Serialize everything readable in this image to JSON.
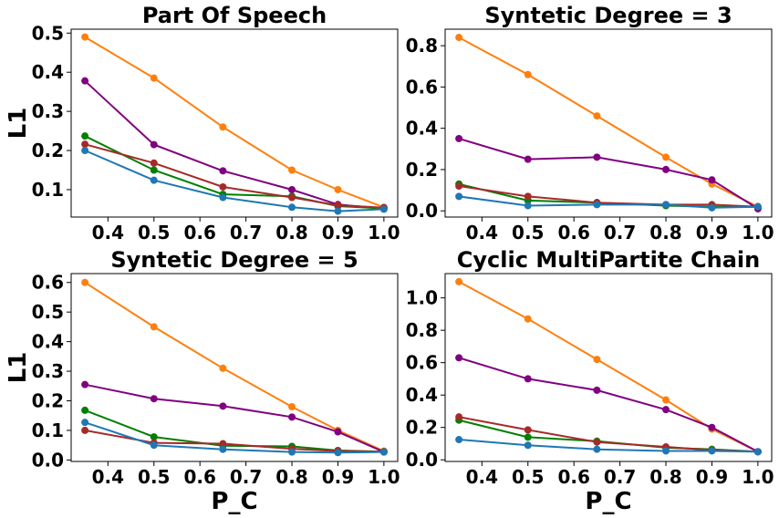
{
  "chart_data": [
    {
      "type": "line",
      "title": "Part Of Speech",
      "xlabel": "",
      "ylabel": "L1",
      "x": [
        0.35,
        0.5,
        0.65,
        0.8,
        0.9,
        1.0
      ],
      "xlim": [
        0.32,
        1.03
      ],
      "ylim": [
        0.03,
        0.51
      ],
      "xticks": [
        "0.4",
        "0.5",
        "0.6",
        "0.7",
        "0.8",
        "0.9",
        "1.0"
      ],
      "yticks": [
        "0.1",
        "0.2",
        "0.3",
        "0.4",
        "0.5"
      ],
      "series": [
        {
          "color": "#ff7f0e",
          "values": [
            0.49,
            0.385,
            0.26,
            0.15,
            0.1,
            0.055
          ]
        },
        {
          "color": "#800080",
          "values": [
            0.378,
            0.215,
            0.148,
            0.1,
            0.062,
            0.052
          ]
        },
        {
          "color": "#008000",
          "values": [
            0.237,
            0.15,
            0.088,
            0.083,
            0.058,
            0.052
          ]
        },
        {
          "color": "#a52a2a",
          "values": [
            0.216,
            0.168,
            0.107,
            0.08,
            0.06,
            0.054
          ]
        },
        {
          "color": "#1f77b4",
          "values": [
            0.2,
            0.124,
            0.08,
            0.055,
            0.045,
            0.05
          ]
        }
      ]
    },
    {
      "type": "line",
      "title": "Syntetic Degree = 3",
      "xlabel": "",
      "ylabel": "",
      "x": [
        0.35,
        0.5,
        0.65,
        0.8,
        0.9,
        1.0
      ],
      "xlim": [
        0.32,
        1.03
      ],
      "ylim": [
        -0.03,
        0.88
      ],
      "xticks": [
        "0.4",
        "0.5",
        "0.6",
        "0.7",
        "0.8",
        "0.9",
        "1.0"
      ],
      "yticks": [
        "0.0",
        "0.2",
        "0.4",
        "0.6",
        "0.8"
      ],
      "series": [
        {
          "color": "#ff7f0e",
          "values": [
            0.84,
            0.66,
            0.46,
            0.26,
            0.13,
            0.02
          ]
        },
        {
          "color": "#800080",
          "values": [
            0.35,
            0.25,
            0.26,
            0.2,
            0.15,
            0.01
          ]
        },
        {
          "color": "#008000",
          "values": [
            0.13,
            0.05,
            0.04,
            0.025,
            0.02,
            0.02
          ]
        },
        {
          "color": "#a52a2a",
          "values": [
            0.12,
            0.07,
            0.04,
            0.03,
            0.03,
            0.02
          ]
        },
        {
          "color": "#1f77b4",
          "values": [
            0.07,
            0.025,
            0.03,
            0.03,
            0.015,
            0.02
          ]
        }
      ]
    },
    {
      "type": "line",
      "title": "Syntetic Degree = 5",
      "xlabel": "P_C",
      "ylabel": "L1",
      "x": [
        0.35,
        0.5,
        0.65,
        0.8,
        0.9,
        1.0
      ],
      "xlim": [
        0.32,
        1.03
      ],
      "ylim": [
        -0.005,
        0.63
      ],
      "xticks": [
        "0.4",
        "0.5",
        "0.6",
        "0.7",
        "0.8",
        "0.9",
        "1.0"
      ],
      "yticks": [
        "0.0",
        "0.1",
        "0.2",
        "0.3",
        "0.4",
        "0.5",
        "0.6"
      ],
      "series": [
        {
          "color": "#ff7f0e",
          "values": [
            0.6,
            0.45,
            0.31,
            0.18,
            0.1,
            0.03
          ]
        },
        {
          "color": "#800080",
          "values": [
            0.255,
            0.207,
            0.182,
            0.145,
            0.095,
            0.027
          ]
        },
        {
          "color": "#008000",
          "values": [
            0.168,
            0.078,
            0.048,
            0.046,
            0.032,
            0.028
          ]
        },
        {
          "color": "#a52a2a",
          "values": [
            0.1,
            0.058,
            0.055,
            0.038,
            0.03,
            0.028
          ]
        },
        {
          "color": "#1f77b4",
          "values": [
            0.127,
            0.05,
            0.036,
            0.027,
            0.025,
            0.027
          ]
        }
      ]
    },
    {
      "type": "line",
      "title": "Cyclic MultiPartite Chain",
      "xlabel": "P_C",
      "ylabel": "",
      "x": [
        0.35,
        0.5,
        0.65,
        0.8,
        0.9,
        1.0
      ],
      "xlim": [
        0.32,
        1.03
      ],
      "ylim": [
        -0.01,
        1.15
      ],
      "xticks": [
        "0.4",
        "0.5",
        "0.6",
        "0.7",
        "0.8",
        "0.9",
        "1.0"
      ],
      "yticks": [
        "0.0",
        "0.2",
        "0.4",
        "0.6",
        "0.8",
        "1.0"
      ],
      "series": [
        {
          "color": "#ff7f0e",
          "values": [
            1.1,
            0.87,
            0.62,
            0.37,
            0.19,
            0.05
          ]
        },
        {
          "color": "#800080",
          "values": [
            0.63,
            0.5,
            0.43,
            0.31,
            0.2,
            0.05
          ]
        },
        {
          "color": "#008000",
          "values": [
            0.245,
            0.14,
            0.115,
            0.075,
            0.065,
            0.05
          ]
        },
        {
          "color": "#a52a2a",
          "values": [
            0.265,
            0.185,
            0.11,
            0.08,
            0.06,
            0.05
          ]
        },
        {
          "color": "#1f77b4",
          "values": [
            0.125,
            0.09,
            0.065,
            0.055,
            0.055,
            0.05
          ]
        }
      ]
    }
  ]
}
